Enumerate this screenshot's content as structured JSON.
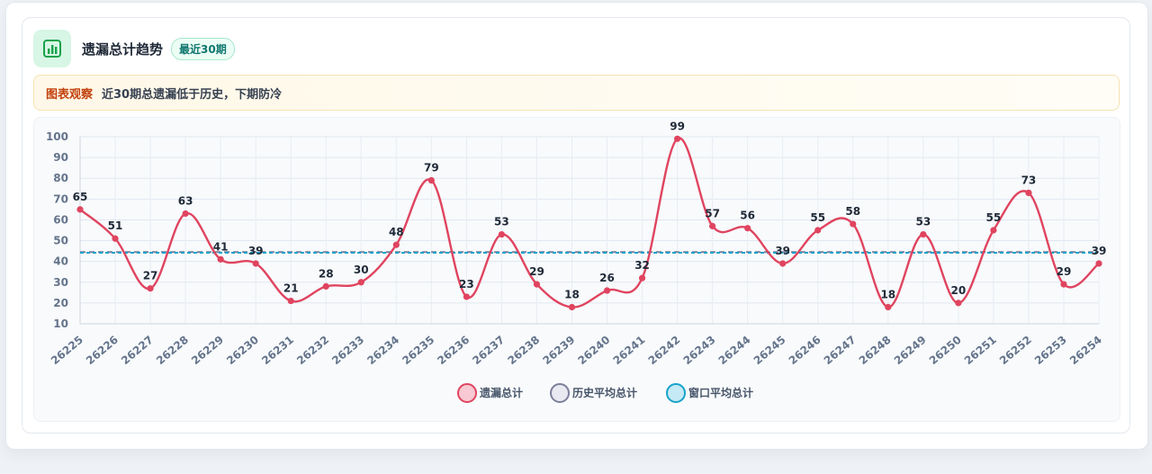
{
  "header": {
    "title": "遗漏总计趋势",
    "badge": "最近30期",
    "icon": "bar-chart-icon"
  },
  "insight": {
    "label": "图表观察",
    "text": "近30期总遗漏低于历史，下期防冷"
  },
  "colors": {
    "series": "#e0445f",
    "history_avg": "#7c7f9a",
    "window_avg": "#17a2c9",
    "accent": "#16a34a"
  },
  "chart_data": {
    "type": "line",
    "title": "",
    "xlabel": "",
    "ylabel": "",
    "ylim": [
      10,
      100
    ],
    "yticks": [
      100,
      90,
      80,
      70,
      60,
      50,
      40,
      30,
      20,
      10
    ],
    "categories": [
      "26225",
      "26226",
      "26227",
      "26228",
      "26229",
      "26230",
      "26231",
      "26232",
      "26233",
      "26234",
      "26235",
      "26236",
      "26237",
      "26238",
      "26239",
      "26240",
      "26241",
      "26242",
      "26243",
      "26244",
      "26245",
      "26246",
      "26247",
      "26248",
      "26249",
      "26250",
      "26251",
      "26252",
      "26253",
      "26254"
    ],
    "series": [
      {
        "name": "遗漏总计",
        "values": [
          65,
          51,
          27,
          63,
          41,
          39,
          21,
          28,
          30,
          48,
          79,
          23,
          53,
          29,
          18,
          26,
          32,
          99,
          57,
          56,
          39,
          55,
          58,
          18,
          53,
          20,
          55,
          73,
          29,
          39
        ]
      }
    ],
    "reference_lines": [
      {
        "name": "历史平均总计",
        "value": 44.5
      },
      {
        "name": "窗口平均总计",
        "value": 44.2
      }
    ],
    "legend": [
      "遗漏总计",
      "历史平均总计",
      "窗口平均总计"
    ],
    "legend_position": "bottom",
    "grid": true
  }
}
